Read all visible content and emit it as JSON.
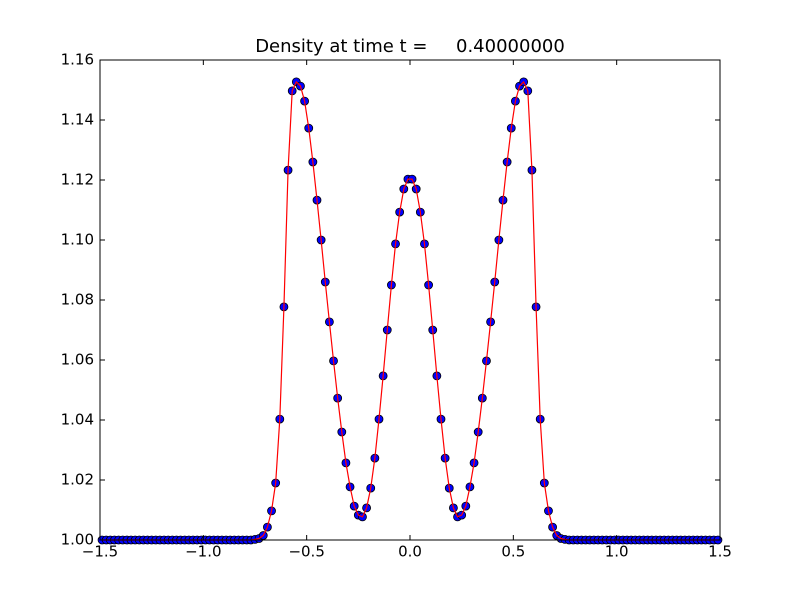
{
  "chart_data": {
    "type": "line",
    "title": "Density at time t =     0.40000000",
    "x": [
      -1.49,
      -1.47,
      -1.45,
      -1.43,
      -1.41,
      -1.39,
      -1.37,
      -1.35,
      -1.33,
      -1.31,
      -1.29,
      -1.27,
      -1.25,
      -1.23,
      -1.21,
      -1.19,
      -1.17,
      -1.15,
      -1.13,
      -1.11,
      -1.09,
      -1.07,
      -1.05,
      -1.03,
      -1.01,
      -0.99,
      -0.97,
      -0.95,
      -0.93,
      -0.91,
      -0.89,
      -0.87,
      -0.85,
      -0.83,
      -0.81,
      -0.79,
      -0.77,
      -0.75,
      -0.73,
      -0.71,
      -0.69,
      -0.67,
      -0.65,
      -0.63,
      -0.61,
      -0.59,
      -0.57,
      -0.55,
      -0.53,
      -0.51,
      -0.49,
      -0.47,
      -0.45,
      -0.43,
      -0.41,
      -0.39,
      -0.37,
      -0.35,
      -0.33,
      -0.31,
      -0.29,
      -0.27,
      -0.25,
      -0.23,
      -0.21,
      -0.19,
      -0.17,
      -0.15,
      -0.13,
      -0.11,
      -0.09,
      -0.07,
      -0.05,
      -0.03,
      -0.01,
      0.01,
      0.03,
      0.05,
      0.07,
      0.09,
      0.11,
      0.13,
      0.15,
      0.17,
      0.19,
      0.21,
      0.23,
      0.25,
      0.27,
      0.29,
      0.31,
      0.33,
      0.35,
      0.37,
      0.39,
      0.41,
      0.43,
      0.45,
      0.47,
      0.49,
      0.51,
      0.53,
      0.55,
      0.57,
      0.59,
      0.61,
      0.63,
      0.65,
      0.67,
      0.69,
      0.71,
      0.73,
      0.75,
      0.77,
      0.79,
      0.81,
      0.83,
      0.85,
      0.87,
      0.89,
      0.91,
      0.93,
      0.95,
      0.97,
      0.99,
      1.01,
      1.03,
      1.05,
      1.07,
      1.09,
      1.11,
      1.13,
      1.15,
      1.17,
      1.19,
      1.21,
      1.23,
      1.25,
      1.27,
      1.29,
      1.31,
      1.33,
      1.35,
      1.37,
      1.39,
      1.41,
      1.43,
      1.45,
      1.47,
      1.49
    ],
    "series": [
      {
        "mode": "markers",
        "color": "#0000ff",
        "values": [
          1,
          1,
          1,
          1,
          1,
          1,
          1,
          1,
          1,
          1,
          1,
          1,
          1,
          1,
          1,
          1,
          1,
          1,
          1,
          1,
          1,
          1,
          1,
          1,
          1,
          1,
          1,
          1,
          1,
          1,
          1,
          1,
          1,
          1,
          1,
          1,
          1,
          1.0002,
          1.0005,
          1.0015,
          1.0043,
          1.0097,
          1.019,
          1.0403,
          1.0777,
          1.1233,
          1.1497,
          1.1527,
          1.1513,
          1.1463,
          1.1373,
          1.126,
          1.1133,
          1.1,
          1.086,
          1.0727,
          1.0597,
          1.0473,
          1.036,
          1.0257,
          1.0177,
          1.0113,
          1.0083,
          1.0077,
          1.0107,
          1.0173,
          1.0273,
          1.0403,
          1.0547,
          1.07,
          1.085,
          1.0987,
          1.1093,
          1.117,
          1.1203,
          1.1203,
          1.117,
          1.1093,
          1.0987,
          1.085,
          1.07,
          1.0547,
          1.0403,
          1.0273,
          1.0173,
          1.0107,
          1.0077,
          1.0083,
          1.0113,
          1.0177,
          1.0257,
          1.036,
          1.0473,
          1.0597,
          1.0727,
          1.086,
          1.1,
          1.1133,
          1.126,
          1.1373,
          1.1463,
          1.1513,
          1.1527,
          1.1497,
          1.1233,
          1.0777,
          1.0403,
          1.019,
          1.0097,
          1.0043,
          1.0015,
          1.0005,
          1.0002,
          1,
          1,
          1,
          1,
          1,
          1,
          1,
          1,
          1,
          1,
          1,
          1,
          1,
          1,
          1,
          1,
          1,
          1,
          1,
          1,
          1,
          1,
          1,
          1,
          1,
          1,
          1,
          1,
          1,
          1,
          1,
          1,
          1,
          1,
          1,
          1,
          1
        ]
      },
      {
        "mode": "line",
        "color": "#ff0000",
        "values": [
          1,
          1,
          1,
          1,
          1,
          1,
          1,
          1,
          1,
          1,
          1,
          1,
          1,
          1,
          1,
          1,
          1,
          1,
          1,
          1,
          1,
          1,
          1,
          1,
          1,
          1,
          1,
          1,
          1,
          1,
          1,
          1,
          1,
          1,
          1,
          1,
          1,
          1.0002,
          1.0005,
          1.0015,
          1.0043,
          1.0097,
          1.019,
          1.0403,
          1.0777,
          1.1233,
          1.1497,
          1.1527,
          1.1513,
          1.1463,
          1.1373,
          1.126,
          1.1133,
          1.1,
          1.086,
          1.0727,
          1.0597,
          1.0473,
          1.036,
          1.0257,
          1.0177,
          1.0113,
          1.0083,
          1.0077,
          1.0107,
          1.0173,
          1.0273,
          1.0403,
          1.0547,
          1.07,
          1.085,
          1.0987,
          1.1093,
          1.117,
          1.1203,
          1.1203,
          1.117,
          1.1093,
          1.0987,
          1.085,
          1.07,
          1.0547,
          1.0403,
          1.0273,
          1.0173,
          1.0107,
          1.0077,
          1.0083,
          1.0113,
          1.0177,
          1.0257,
          1.036,
          1.0473,
          1.0597,
          1.0727,
          1.086,
          1.1,
          1.1133,
          1.126,
          1.1373,
          1.1463,
          1.1513,
          1.1527,
          1.1497,
          1.1233,
          1.0777,
          1.0403,
          1.019,
          1.0097,
          1.0043,
          1.0015,
          1.0005,
          1.0002,
          1,
          1,
          1,
          1,
          1,
          1,
          1,
          1,
          1,
          1,
          1,
          1,
          1,
          1,
          1,
          1,
          1,
          1,
          1,
          1,
          1,
          1,
          1,
          1,
          1,
          1,
          1,
          1,
          1,
          1,
          1,
          1,
          1,
          1,
          1,
          1,
          1
        ]
      }
    ],
    "xlim": [
      -1.5,
      1.5
    ],
    "xticks": [
      {
        "value": -1.5,
        "label": "−1.5"
      },
      {
        "value": -1,
        "label": "−1.0"
      },
      {
        "value": -0.5,
        "label": "−0.5"
      },
      {
        "value": 0,
        "label": "0.0"
      },
      0.5,
      {
        "value": 1,
        "label": "1.0"
      },
      1.5
    ],
    "ylim": [
      1,
      1.16
    ],
    "yticks": [
      {
        "value": 1,
        "label": "1.00"
      },
      {
        "value": 1.02,
        "label": "1.02"
      },
      {
        "value": 1.04,
        "label": "1.04"
      },
      {
        "value": 1.06,
        "label": "1.06"
      },
      {
        "value": 1.08,
        "label": "1.08"
      },
      {
        "value": 1.1,
        "label": "1.10"
      },
      {
        "value": 1.12,
        "label": "1.12"
      },
      {
        "value": 1.14,
        "label": "1.14"
      },
      {
        "value": 1.16,
        "label": "1.16"
      }
    ],
    "grid": false
  }
}
